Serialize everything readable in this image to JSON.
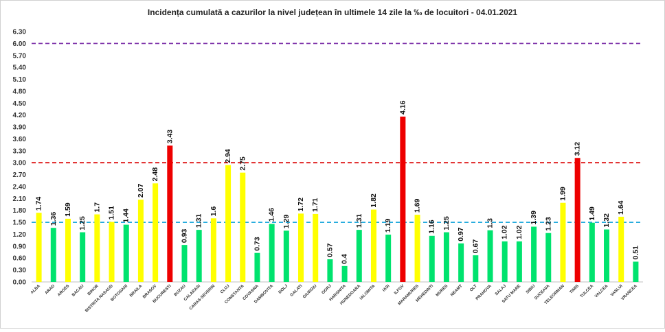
{
  "chart_data": {
    "type": "bar",
    "title": "Incidența cumulată a cazurilor la nivel județean în ultimele 14 zile la ‰ de locuitori - 04.01.2021",
    "xlabel": "",
    "ylabel": "",
    "ylim": [
      0,
      6.3
    ],
    "yticks": [
      "0.00",
      "0.30",
      "0.60",
      "0.90",
      "1.20",
      "1.50",
      "1.80",
      "2.10",
      "2.40",
      "2.70",
      "3.00",
      "3.30",
      "3.60",
      "3.90",
      "4.20",
      "4.50",
      "4.80",
      "5.10",
      "5.40",
      "5.70",
      "6.00",
      "6.30"
    ],
    "grid": false,
    "legend": "none",
    "categories": [
      "ALBA",
      "ARAD",
      "ARGES",
      "BACAU",
      "BIHOR",
      "BISTRITA NASAUD",
      "BOTOSANI",
      "BRAILA",
      "BRASOV",
      "BUCURESTI",
      "BUZAU",
      "CALARASI",
      "CARAS-SEVERIN",
      "CLUJ",
      "CONSTANTA",
      "COVASNA",
      "DAMBOVITA",
      "DOLJ",
      "GALATI",
      "GIURGIU",
      "GORJ",
      "HARGHITA",
      "HUNEDOARA",
      "IALOMITA",
      "IASI",
      "ILFOV",
      "MARAMURES",
      "MEHEDINTI",
      "MURES",
      "NEAMT",
      "OLT",
      "PRAHOVA",
      "SALAJ",
      "SATU MARE",
      "SIBIU",
      "SUCEAVA",
      "TELEORMAN",
      "TIMIS",
      "TULCEA",
      "VALCEA",
      "VASLUI",
      "VRANCEA"
    ],
    "values": [
      1.74,
      1.36,
      1.59,
      1.25,
      1.7,
      1.51,
      1.44,
      2.07,
      2.48,
      3.43,
      0.93,
      1.31,
      1.6,
      2.94,
      2.75,
      0.73,
      1.46,
      1.29,
      1.72,
      1.71,
      0.57,
      0.4,
      1.31,
      1.82,
      1.19,
      4.16,
      1.69,
      1.16,
      1.25,
      0.97,
      0.67,
      1.3,
      1.02,
      1.02,
      1.39,
      1.23,
      1.99,
      3.12,
      1.49,
      1.32,
      1.64,
      0.51
    ],
    "data_labels": [
      "1.74",
      "1.36",
      "1.59",
      "1.25",
      "1.7",
      "1.51",
      "1.44",
      "2.07",
      "2.48",
      "3.43",
      "0.93",
      "1.31",
      "1.6",
      "2.94",
      "2.75",
      "0.73",
      "1.46",
      "1.29",
      "1.72",
      "1.71",
      "0.57",
      "0.4",
      "1.31",
      "1.82",
      "1.19",
      "4.16",
      "1.69",
      "1.16",
      "1.25",
      "0.97",
      "0.67",
      "1.3",
      "1.02",
      "1.02",
      "1.39",
      "1.23",
      "1.99",
      "3.12",
      "1.49",
      "1.32",
      "1.64",
      "0.51"
    ],
    "bar_colors": [
      "#ffff00",
      "#00e36e",
      "#ffff00",
      "#00e36e",
      "#ffff00",
      "#ffff00",
      "#00e36e",
      "#ffff00",
      "#ffff00",
      "#ee0000",
      "#00e36e",
      "#00e36e",
      "#ffff00",
      "#ffff00",
      "#ffff00",
      "#00e36e",
      "#00e36e",
      "#00e36e",
      "#ffff00",
      "#ffff00",
      "#00e36e",
      "#00e36e",
      "#00e36e",
      "#ffff00",
      "#00e36e",
      "#ee0000",
      "#ffff00",
      "#00e36e",
      "#00e36e",
      "#00e36e",
      "#00e36e",
      "#00e36e",
      "#00e36e",
      "#00e36e",
      "#00e36e",
      "#00e36e",
      "#ffff00",
      "#ee0000",
      "#00e36e",
      "#00e36e",
      "#ffff00",
      "#00e36e"
    ],
    "reference_lines": [
      {
        "value": 6.0,
        "color": "#7b2fa8"
      },
      {
        "value": 3.0,
        "color": "#dd1111"
      },
      {
        "value": 1.5,
        "color": "#22aadd"
      }
    ]
  }
}
